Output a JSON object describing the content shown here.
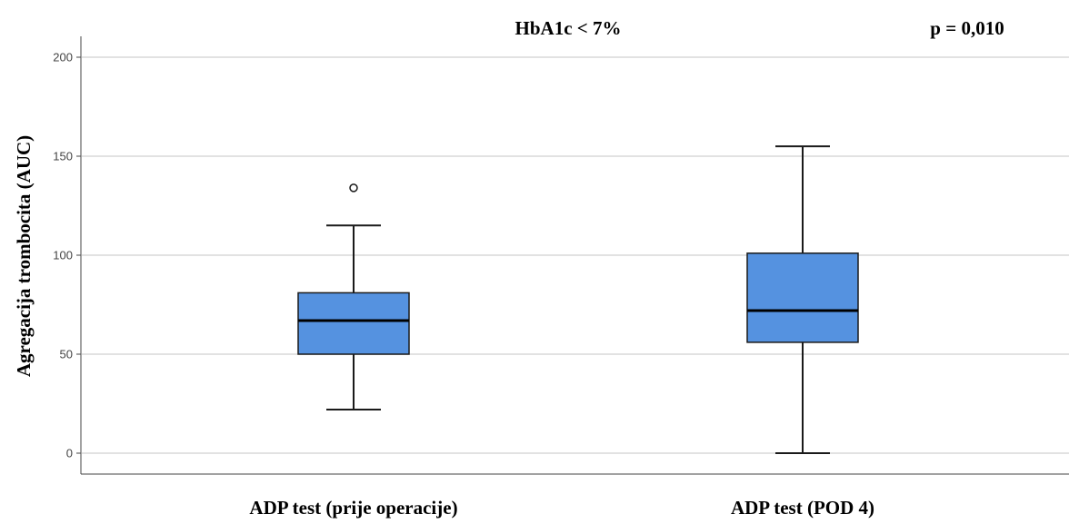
{
  "chart_data": {
    "type": "boxplot",
    "title": "HbA1c < 7%",
    "annotation": "p = 0,010",
    "xlabel": "",
    "ylabel": "Agregacija trombocita (AUC)",
    "ylim": [
      0,
      200
    ],
    "yticks": [
      0,
      50,
      100,
      150,
      200
    ],
    "grid": true,
    "colors": {
      "box": "#5592e0",
      "stroke": "#1a1a1a",
      "grid": "#d9d9d9"
    },
    "categories": [
      "ADP test (prije operacije)",
      "ADP test (POD 4)"
    ],
    "boxes": [
      {
        "whisker_low": 22,
        "q1": 50,
        "median": 67,
        "q3": 81,
        "whisker_high": 115,
        "outliers": [
          134
        ]
      },
      {
        "whisker_low": 0,
        "q1": 56,
        "median": 72,
        "q3": 101,
        "whisker_high": 155,
        "outliers": []
      }
    ]
  }
}
